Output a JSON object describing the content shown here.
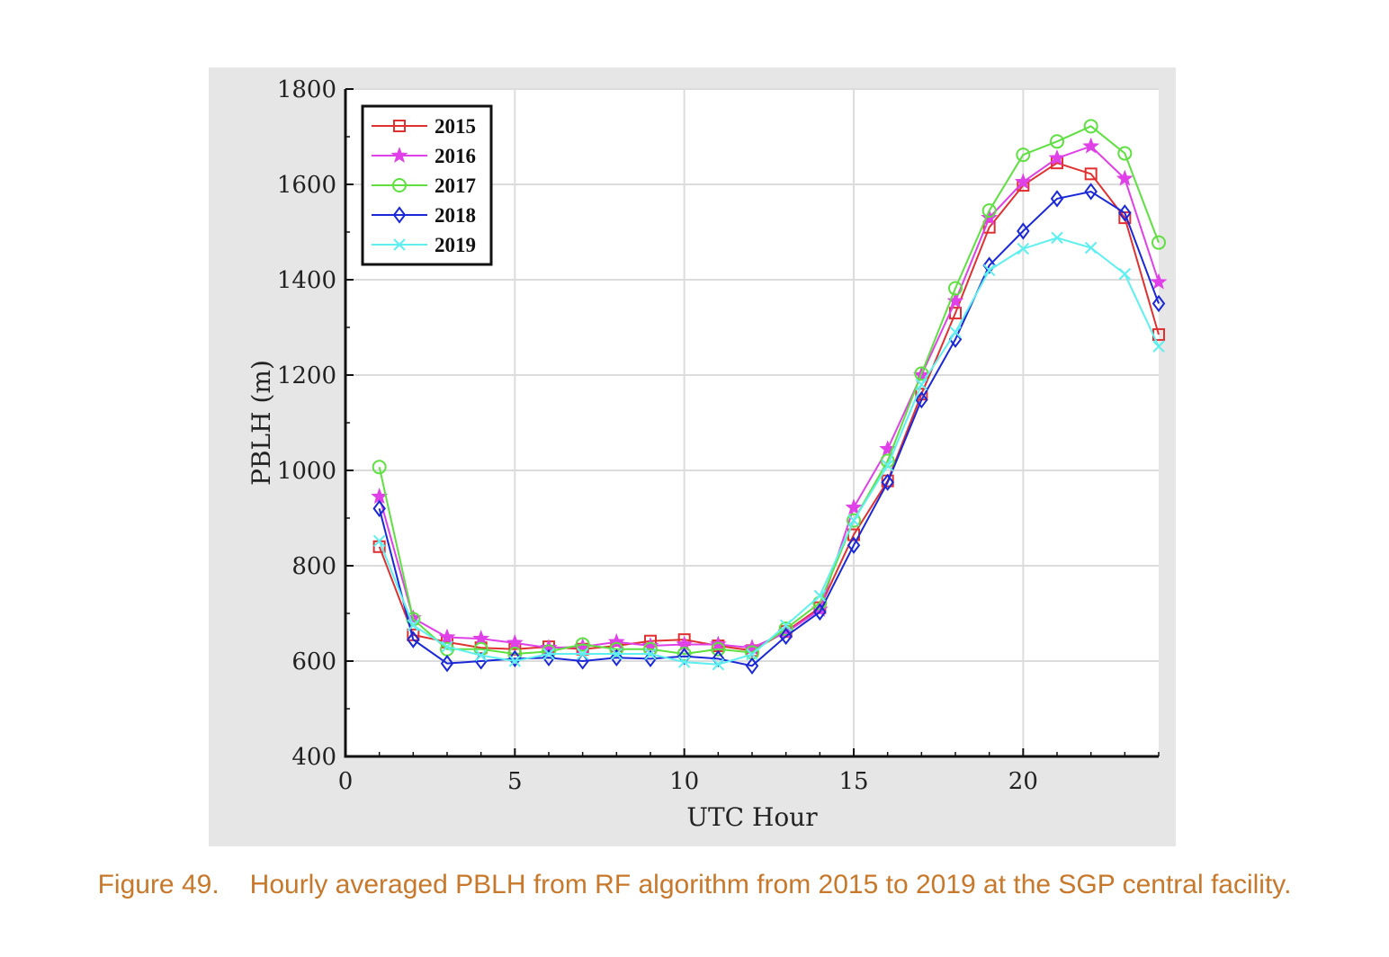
{
  "caption": {
    "label": "Figure 49.",
    "text": "Hourly averaged PBLH from RF algorithm from 2015 to 2019 at the SGP central facility."
  },
  "chart_data": {
    "type": "line",
    "title": "",
    "xlabel": "UTC Hour",
    "ylabel": "PBLH (m)",
    "xlim": [
      0,
      24
    ],
    "ylim": [
      400,
      1800
    ],
    "xticks": [
      0,
      5,
      10,
      15,
      20
    ],
    "yticks": [
      400,
      600,
      800,
      1000,
      1200,
      1400,
      1600,
      1800
    ],
    "grid": true,
    "legend": "top-left",
    "x": [
      1,
      2,
      3,
      4,
      5,
      6,
      7,
      8,
      9,
      10,
      11,
      12,
      13,
      14,
      15,
      16,
      17,
      18,
      19,
      20,
      21,
      22,
      23,
      24
    ],
    "series": [
      {
        "name": "2015",
        "color": "#e03030",
        "marker": "square",
        "values": [
          840,
          655,
          640,
          628,
          625,
          630,
          625,
          632,
          642,
          645,
          632,
          622,
          662,
          712,
          865,
          978,
          1160,
          1330,
          1510,
          1598,
          1645,
          1622,
          1530,
          1285
        ]
      },
      {
        "name": "2016",
        "color": "#e040e8",
        "marker": "star",
        "values": [
          945,
          690,
          650,
          647,
          638,
          628,
          630,
          640,
          632,
          635,
          635,
          628,
          660,
          708,
          922,
          1045,
          1200,
          1355,
          1530,
          1605,
          1655,
          1680,
          1612,
          1395
        ]
      },
      {
        "name": "2017",
        "color": "#5ee040",
        "marker": "circle",
        "values": [
          1007,
          688,
          625,
          625,
          615,
          620,
          635,
          625,
          625,
          615,
          625,
          618,
          668,
          722,
          895,
          1020,
          1203,
          1382,
          1545,
          1662,
          1690,
          1722,
          1665,
          1478
        ]
      },
      {
        "name": "2018",
        "color": "#1a28d8",
        "marker": "diamond",
        "values": [
          920,
          645,
          595,
          600,
          605,
          607,
          600,
          607,
          605,
          610,
          605,
          590,
          652,
          703,
          843,
          975,
          1148,
          1275,
          1430,
          1502,
          1570,
          1585,
          1540,
          1350
        ]
      },
      {
        "name": "2019",
        "color": "#5ef0f0",
        "marker": "x",
        "values": [
          852,
          675,
          630,
          612,
          600,
          615,
          615,
          615,
          615,
          598,
          593,
          614,
          675,
          737,
          895,
          1010,
          1180,
          1290,
          1420,
          1465,
          1488,
          1467,
          1412,
          1260
        ]
      }
    ]
  }
}
